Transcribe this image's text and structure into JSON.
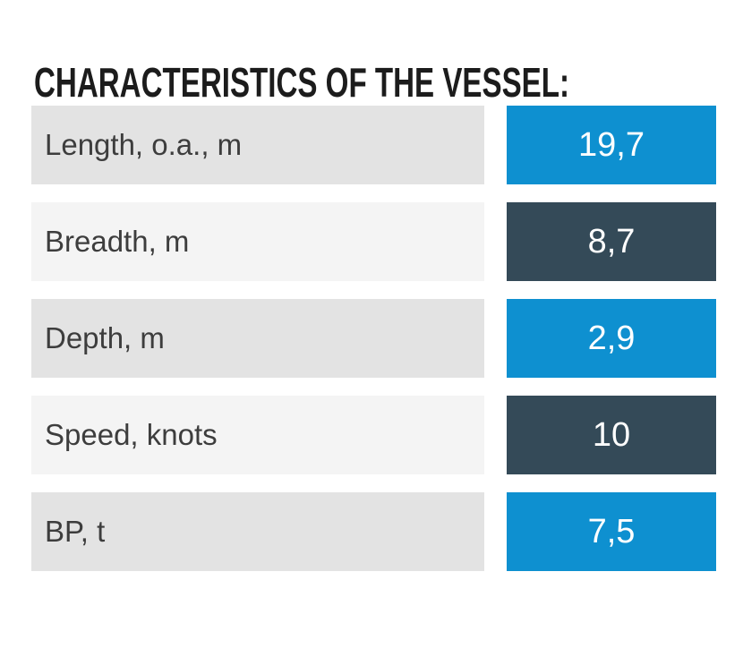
{
  "title": "CHARACTERISTICS OF THE VESSEL:",
  "colors": {
    "accent_blue": "#0e90d0",
    "dark_slate": "#344a58",
    "row_gray": "#e3e3e3",
    "row_light": "#f4f4f4",
    "title_text": "#1c1c1c",
    "label_text": "#3d3d3d",
    "value_text": "#ffffff"
  },
  "characteristics": [
    {
      "label": "Length, o.a., m",
      "value": "19,7"
    },
    {
      "label": "Breadth, m",
      "value": "8,7"
    },
    {
      "label": "Depth, m",
      "value": "2,9"
    },
    {
      "label": "Speed, knots",
      "value": "10"
    },
    {
      "label": "BP, t",
      "value": "7,5"
    }
  ]
}
